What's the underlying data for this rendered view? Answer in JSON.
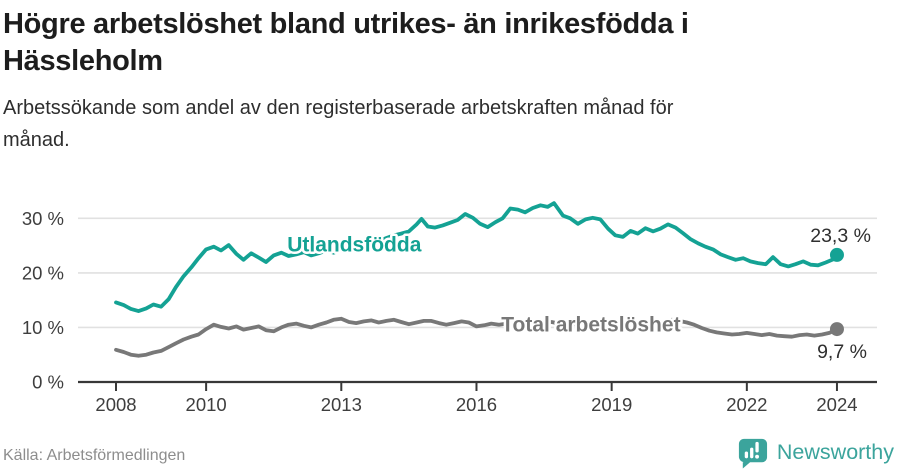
{
  "header": {
    "title": "Högre arbetslöshet bland utrikes- än inrikesfödda i Hässleholm",
    "subtitle": "Arbetssökande som andel av den registerbaserade arbetskraften månad för månad."
  },
  "footer": {
    "source": "Källa: Arbetsförmedlingen",
    "brand": "Newsworthy",
    "brand_icon": "newsworthy-speech-bubble-barchart-icon",
    "brand_color": "#3ba49c"
  },
  "colors": {
    "background": "#ffffff",
    "title_text": "#1d1d1d",
    "subtitle_text": "#2e2e2e",
    "grid": "#e1e1e1",
    "axis": "#383838",
    "tick_text": "#3e3e3e",
    "end_label_text": "#2f2f2f",
    "source_text": "#8d8d8d",
    "series_foreign_born": "#14a294",
    "series_total": "#787878"
  },
  "chart_data": {
    "type": "line",
    "title": "Högre arbetslöshet bland utrikes- än inrikesfödda i Hässleholm",
    "subtitle": "Arbetssökande som andel av den registerbaserade arbetskraften månad för månad.",
    "xlabel": "",
    "ylabel": "",
    "grid": true,
    "x_axis": {
      "ticks": [
        2008,
        2010,
        2013,
        2016,
        2019,
        2022,
        2024
      ],
      "range": [
        2007.6,
        2024.9
      ]
    },
    "y_axis": {
      "ticks": [
        0,
        10,
        20,
        30
      ],
      "tick_suffix": " %",
      "range": [
        0,
        33.5
      ]
    },
    "series": [
      {
        "name": "Utlandsfödda",
        "color": "#14a294",
        "end_label": "23,3 %",
        "end_value": 23.3,
        "end_label_position": "above",
        "label_anchor": {
          "text": "Utlandsfödda",
          "x": 2011.8,
          "y": 23.95,
          "anchor": "start"
        },
        "points": [
          [
            2008.0,
            14.6
          ],
          [
            2008.17,
            14.1
          ],
          [
            2008.33,
            13.4
          ],
          [
            2008.5,
            13.0
          ],
          [
            2008.67,
            13.5
          ],
          [
            2008.83,
            14.2
          ],
          [
            2009.0,
            13.8
          ],
          [
            2009.17,
            15.2
          ],
          [
            2009.33,
            17.4
          ],
          [
            2009.5,
            19.4
          ],
          [
            2009.67,
            21.0
          ],
          [
            2009.83,
            22.7
          ],
          [
            2010.0,
            24.3
          ],
          [
            2010.17,
            24.8
          ],
          [
            2010.33,
            24.1
          ],
          [
            2010.5,
            25.1
          ],
          [
            2010.67,
            23.5
          ],
          [
            2010.83,
            22.4
          ],
          [
            2011.0,
            23.6
          ],
          [
            2011.17,
            22.8
          ],
          [
            2011.33,
            22.0
          ],
          [
            2011.5,
            23.2
          ],
          [
            2011.67,
            23.7
          ],
          [
            2011.83,
            23.1
          ],
          [
            2012.0,
            23.4
          ],
          [
            2012.17,
            23.8
          ],
          [
            2012.33,
            23.2
          ],
          [
            2012.5,
            23.6
          ],
          [
            2012.67,
            24.1
          ],
          [
            2012.83,
            23.7
          ],
          [
            2013.0,
            24.2
          ],
          [
            2013.17,
            24.6
          ],
          [
            2013.33,
            24.3
          ],
          [
            2013.5,
            24.8
          ],
          [
            2013.67,
            25.2
          ],
          [
            2013.83,
            25.8
          ],
          [
            2014.0,
            26.4
          ],
          [
            2014.17,
            26.9
          ],
          [
            2014.33,
            27.2
          ],
          [
            2014.5,
            27.6
          ],
          [
            2014.67,
            28.9
          ],
          [
            2014.78,
            29.9
          ],
          [
            2014.92,
            28.5
          ],
          [
            2015.08,
            28.3
          ],
          [
            2015.25,
            28.7
          ],
          [
            2015.42,
            29.2
          ],
          [
            2015.58,
            29.7
          ],
          [
            2015.75,
            30.8
          ],
          [
            2015.92,
            30.1
          ],
          [
            2016.08,
            29.0
          ],
          [
            2016.25,
            28.4
          ],
          [
            2016.42,
            29.3
          ],
          [
            2016.58,
            30.0
          ],
          [
            2016.75,
            31.8
          ],
          [
            2016.92,
            31.6
          ],
          [
            2017.08,
            31.1
          ],
          [
            2017.25,
            31.9
          ],
          [
            2017.42,
            32.4
          ],
          [
            2017.58,
            32.1
          ],
          [
            2017.72,
            32.8
          ],
          [
            2017.92,
            30.5
          ],
          [
            2018.08,
            30.0
          ],
          [
            2018.25,
            29.0
          ],
          [
            2018.42,
            29.8
          ],
          [
            2018.58,
            30.1
          ],
          [
            2018.75,
            29.8
          ],
          [
            2018.92,
            28.1
          ],
          [
            2019.08,
            26.9
          ],
          [
            2019.25,
            26.6
          ],
          [
            2019.42,
            27.7
          ],
          [
            2019.58,
            27.2
          ],
          [
            2019.75,
            28.2
          ],
          [
            2019.92,
            27.6
          ],
          [
            2020.08,
            28.1
          ],
          [
            2020.25,
            28.9
          ],
          [
            2020.42,
            28.3
          ],
          [
            2020.58,
            27.3
          ],
          [
            2020.75,
            26.2
          ],
          [
            2020.92,
            25.4
          ],
          [
            2021.08,
            24.8
          ],
          [
            2021.25,
            24.3
          ],
          [
            2021.42,
            23.4
          ],
          [
            2021.58,
            22.9
          ],
          [
            2021.75,
            22.4
          ],
          [
            2021.92,
            22.7
          ],
          [
            2022.08,
            22.1
          ],
          [
            2022.25,
            21.8
          ],
          [
            2022.42,
            21.6
          ],
          [
            2022.58,
            22.9
          ],
          [
            2022.75,
            21.6
          ],
          [
            2022.92,
            21.2
          ],
          [
            2023.08,
            21.6
          ],
          [
            2023.25,
            22.1
          ],
          [
            2023.42,
            21.5
          ],
          [
            2023.58,
            21.4
          ],
          [
            2023.75,
            21.9
          ],
          [
            2023.92,
            22.5
          ],
          [
            2024.0,
            23.3
          ]
        ]
      },
      {
        "name": "Total arbetslöshet",
        "color": "#787878",
        "end_label": "9,7 %",
        "end_value": 9.7,
        "end_label_position": "below",
        "label_anchor": {
          "text": "Total arbetslöshet",
          "x": 2016.55,
          "y": 9.3,
          "anchor": "start"
        },
        "points": [
          [
            2008.0,
            5.9
          ],
          [
            2008.17,
            5.5
          ],
          [
            2008.33,
            5.0
          ],
          [
            2008.5,
            4.8
          ],
          [
            2008.67,
            5.0
          ],
          [
            2008.83,
            5.4
          ],
          [
            2009.0,
            5.7
          ],
          [
            2009.17,
            6.4
          ],
          [
            2009.33,
            7.1
          ],
          [
            2009.5,
            7.8
          ],
          [
            2009.67,
            8.3
          ],
          [
            2009.83,
            8.7
          ],
          [
            2010.0,
            9.7
          ],
          [
            2010.17,
            10.5
          ],
          [
            2010.33,
            10.1
          ],
          [
            2010.5,
            9.8
          ],
          [
            2010.67,
            10.2
          ],
          [
            2010.83,
            9.6
          ],
          [
            2011.0,
            9.9
          ],
          [
            2011.17,
            10.2
          ],
          [
            2011.33,
            9.5
          ],
          [
            2011.5,
            9.3
          ],
          [
            2011.67,
            10.0
          ],
          [
            2011.83,
            10.5
          ],
          [
            2012.0,
            10.7
          ],
          [
            2012.17,
            10.3
          ],
          [
            2012.33,
            10.0
          ],
          [
            2012.5,
            10.5
          ],
          [
            2012.67,
            10.9
          ],
          [
            2012.83,
            11.4
          ],
          [
            2013.0,
            11.6
          ],
          [
            2013.17,
            11.0
          ],
          [
            2013.33,
            10.8
          ],
          [
            2013.5,
            11.1
          ],
          [
            2013.67,
            11.3
          ],
          [
            2013.83,
            10.9
          ],
          [
            2014.0,
            11.2
          ],
          [
            2014.17,
            11.4
          ],
          [
            2014.33,
            11.0
          ],
          [
            2014.5,
            10.6
          ],
          [
            2014.67,
            10.9
          ],
          [
            2014.83,
            11.2
          ],
          [
            2015.0,
            11.2
          ],
          [
            2015.17,
            10.8
          ],
          [
            2015.33,
            10.5
          ],
          [
            2015.5,
            10.8
          ],
          [
            2015.67,
            11.1
          ],
          [
            2015.83,
            10.9
          ],
          [
            2016.0,
            10.2
          ],
          [
            2016.17,
            10.4
          ],
          [
            2016.33,
            10.7
          ],
          [
            2016.5,
            10.5
          ],
          [
            2016.67,
            10.7
          ],
          [
            2016.83,
            10.9
          ],
          [
            2017.0,
            10.7
          ],
          [
            2017.17,
            10.9
          ],
          [
            2017.33,
            11.1
          ],
          [
            2017.5,
            10.8
          ],
          [
            2017.67,
            11.0
          ],
          [
            2017.83,
            10.7
          ],
          [
            2018.0,
            10.4
          ],
          [
            2018.17,
            10.6
          ],
          [
            2018.33,
            10.3
          ],
          [
            2018.5,
            10.5
          ],
          [
            2018.67,
            10.2
          ],
          [
            2018.83,
            9.9
          ],
          [
            2019.0,
            9.7
          ],
          [
            2019.17,
            10.0
          ],
          [
            2019.33,
            9.8
          ],
          [
            2019.5,
            10.0
          ],
          [
            2019.67,
            10.2
          ],
          [
            2019.83,
            10.4
          ],
          [
            2020.0,
            10.6
          ],
          [
            2020.17,
            11.0
          ],
          [
            2020.33,
            11.4
          ],
          [
            2020.5,
            11.2
          ],
          [
            2020.67,
            10.9
          ],
          [
            2020.83,
            10.5
          ],
          [
            2021.0,
            9.9
          ],
          [
            2021.17,
            9.4
          ],
          [
            2021.33,
            9.1
          ],
          [
            2021.5,
            8.9
          ],
          [
            2021.67,
            8.7
          ],
          [
            2021.83,
            8.8
          ],
          [
            2022.0,
            9.0
          ],
          [
            2022.17,
            8.8
          ],
          [
            2022.33,
            8.6
          ],
          [
            2022.5,
            8.8
          ],
          [
            2022.67,
            8.5
          ],
          [
            2022.83,
            8.4
          ],
          [
            2023.0,
            8.3
          ],
          [
            2023.17,
            8.6
          ],
          [
            2023.33,
            8.7
          ],
          [
            2023.5,
            8.5
          ],
          [
            2023.67,
            8.7
          ],
          [
            2023.83,
            9.0
          ],
          [
            2024.0,
            9.7
          ]
        ]
      }
    ]
  }
}
